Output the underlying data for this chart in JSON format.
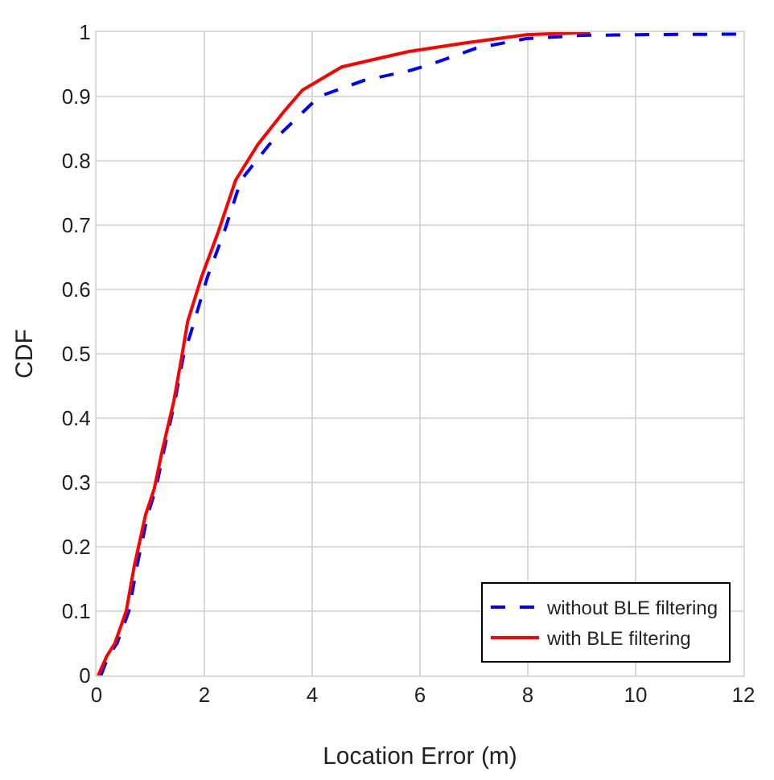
{
  "chart_data": {
    "type": "line",
    "xlabel": "Location Error (m)",
    "ylabel": "CDF",
    "xlim": [
      0,
      12
    ],
    "xticks": [
      0,
      2,
      4,
      6,
      8,
      10,
      12
    ],
    "ylim": [
      0,
      1
    ],
    "yticks": [
      0,
      0.1,
      0.2,
      0.3,
      0.4,
      0.5,
      0.6,
      0.7,
      0.8,
      0.9,
      1
    ],
    "grid": true,
    "legend": "bottom right",
    "marker": "none",
    "series": [
      {
        "name": "without BLE filtering",
        "color": "#0000ff",
        "line_style": "dashed",
        "x": [
          0.08,
          0.22,
          0.38,
          0.6,
          0.75,
          0.95,
          1.1,
          1.25,
          1.45,
          1.62,
          1.74,
          2.06,
          2.37,
          2.68,
          3.2,
          3.82,
          4.13,
          4.96,
          5.8,
          6.2,
          7.04,
          7.97,
          9,
          10,
          11.93
        ],
        "values": [
          0,
          0.03,
          0.05,
          0.1,
          0.17,
          0.25,
          0.29,
          0.35,
          0.425,
          0.5,
          0.53,
          0.62,
          0.69,
          0.77,
          0.825,
          0.875,
          0.9,
          0.925,
          0.94,
          0.95,
          0.975,
          0.99,
          0.995,
          0.996,
          0.997
        ]
      },
      {
        "name": "with BLE filtering",
        "color": "#ff0000",
        "line_style": "solid",
        "x": [
          0.03,
          0.19,
          0.34,
          0.55,
          0.7,
          0.91,
          1.07,
          1.22,
          1.43,
          1.59,
          1.69,
          1.95,
          2.26,
          2.58,
          2.99,
          3.46,
          3.82,
          4.55,
          5.27,
          5.8,
          6.83,
          7.97,
          9.16
        ],
        "values": [
          0,
          0.03,
          0.05,
          0.1,
          0.17,
          0.25,
          0.29,
          0.35,
          0.425,
          0.5,
          0.55,
          0.62,
          0.69,
          0.77,
          0.825,
          0.875,
          0.91,
          0.946,
          0.96,
          0.97,
          0.983,
          0.996,
          1
        ]
      }
    ]
  }
}
